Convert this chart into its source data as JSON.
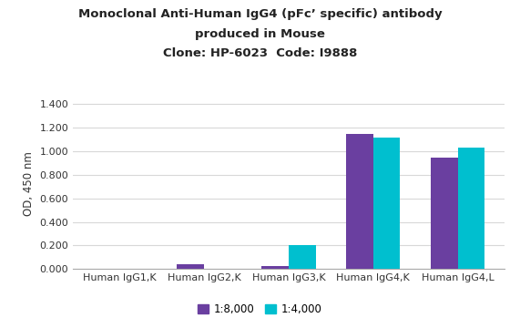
{
  "title_line1": "Monoclonal Anti-Human IgG4 (pFc’ specific) antibody",
  "title_line2": "produced in Mouse",
  "title_line3": "Clone: HP-6023  Code: I9888",
  "categories": [
    "Human IgG1,K",
    "Human IgG2,K",
    "Human IgG3,K",
    "Human IgG4,K",
    "Human IgG4,L"
  ],
  "series1_label": "1:8,000",
  "series2_label": "1:4,000",
  "series1_values": [
    0.0,
    0.04,
    0.025,
    1.15,
    0.95
  ],
  "series2_values": [
    0.0,
    0.0,
    0.205,
    1.115,
    1.03
  ],
  "series1_color": "#6A3FA0",
  "series2_color": "#00BFCF",
  "ylabel": "OD, 450 nm",
  "ylim": [
    0,
    1.45
  ],
  "yticks": [
    0.0,
    0.2,
    0.4,
    0.6,
    0.8,
    1.0,
    1.2,
    1.4
  ],
  "ytick_labels": [
    "0.000",
    "0.200",
    "0.400",
    "0.600",
    "0.800",
    "1.000",
    "1.200",
    "1.400"
  ],
  "bar_width": 0.32,
  "background_color": "#ffffff",
  "grid_color": "#d8d8d8",
  "title_fontsize": 9.5,
  "axis_fontsize": 8.5,
  "tick_fontsize": 8.0,
  "legend_fontsize": 8.5
}
